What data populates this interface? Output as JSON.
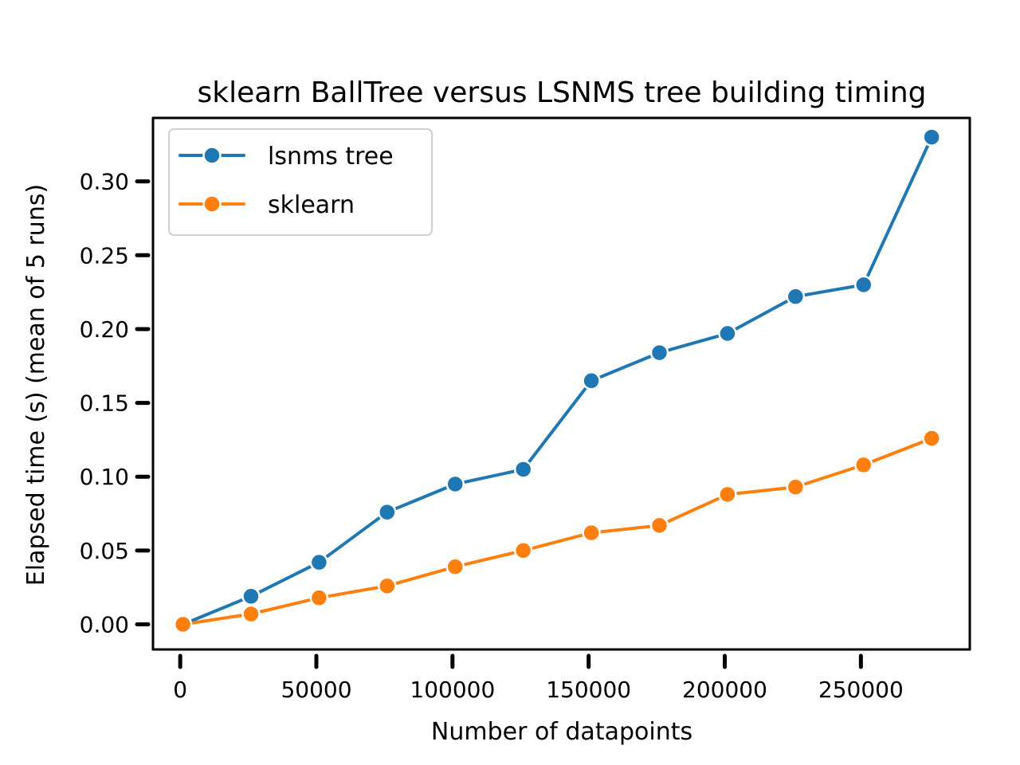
{
  "chart_data": {
    "type": "line",
    "title": "sklearn BallTree versus LSNMS tree building timing",
    "xlabel": "Number of datapoints",
    "ylabel": "Elapsed time (s) (mean of 5 runs)",
    "xlim": [
      -10000,
      290000
    ],
    "ylim": [
      -0.017,
      0.343
    ],
    "x": [
      1000,
      26000,
      51000,
      76000,
      101000,
      126000,
      151000,
      176000,
      201000,
      226000,
      251000,
      276000
    ],
    "x_ticks": [
      0,
      50000,
      100000,
      150000,
      200000,
      250000
    ],
    "x_tick_labels": [
      "0",
      "50000",
      "100000",
      "150000",
      "200000",
      "250000"
    ],
    "y_ticks": [
      0.0,
      0.05,
      0.1,
      0.15,
      0.2,
      0.25,
      0.3
    ],
    "y_tick_labels": [
      "0.00",
      "0.05",
      "0.10",
      "0.15",
      "0.20",
      "0.25",
      "0.30"
    ],
    "grid": false,
    "legend_position": "top-left",
    "series": [
      {
        "name": "lsnms tree",
        "color": "#1f77b4",
        "marker": "circle",
        "values": [
          0.0,
          0.019,
          0.042,
          0.076,
          0.095,
          0.105,
          0.165,
          0.184,
          0.197,
          0.222,
          0.23,
          0.33
        ]
      },
      {
        "name": "sklearn",
        "color": "#ff7f0e",
        "marker": "circle",
        "values": [
          0.0,
          0.007,
          0.018,
          0.026,
          0.039,
          0.05,
          0.062,
          0.067,
          0.088,
          0.093,
          0.108,
          0.126
        ]
      }
    ]
  }
}
